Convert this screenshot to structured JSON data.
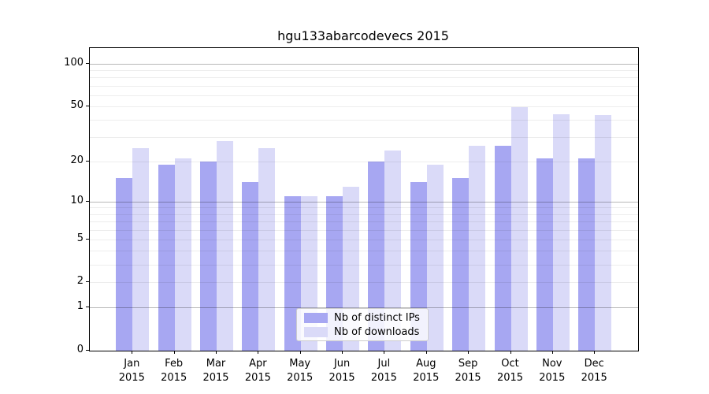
{
  "title": "hgu133abarcodevecs 2015",
  "chart_data": {
    "type": "bar",
    "title": "hgu133abarcodevecs 2015",
    "categories": [
      "Jan",
      "Feb",
      "Mar",
      "Apr",
      "May",
      "Jun",
      "Jul",
      "Aug",
      "Sep",
      "Oct",
      "Nov",
      "Dec"
    ],
    "year": "2015",
    "series": [
      {
        "name": "Nb of distinct IPs",
        "color": "#a7a7f2",
        "values": [
          15,
          19,
          20,
          14,
          11,
          11,
          20,
          14,
          15,
          26,
          21,
          21
        ]
      },
      {
        "name": "Nb of downloads",
        "color": "#dadaf8",
        "values": [
          25,
          21,
          28,
          25,
          11,
          13,
          24,
          19,
          26,
          49,
          44,
          43
        ]
      }
    ],
    "yscale": "log1p",
    "ylim": [
      0,
      128
    ],
    "yticks": [
      0,
      1,
      2,
      5,
      10,
      20,
      50,
      100
    ],
    "major_gridlines": [
      1,
      10,
      100
    ],
    "minor_gridlines": [
      2,
      3,
      4,
      5,
      6,
      7,
      8,
      9,
      20,
      30,
      40,
      50,
      60,
      70,
      80,
      90
    ],
    "grid": true,
    "legend_position": "lower-center",
    "xlabel": "",
    "ylabel": ""
  }
}
